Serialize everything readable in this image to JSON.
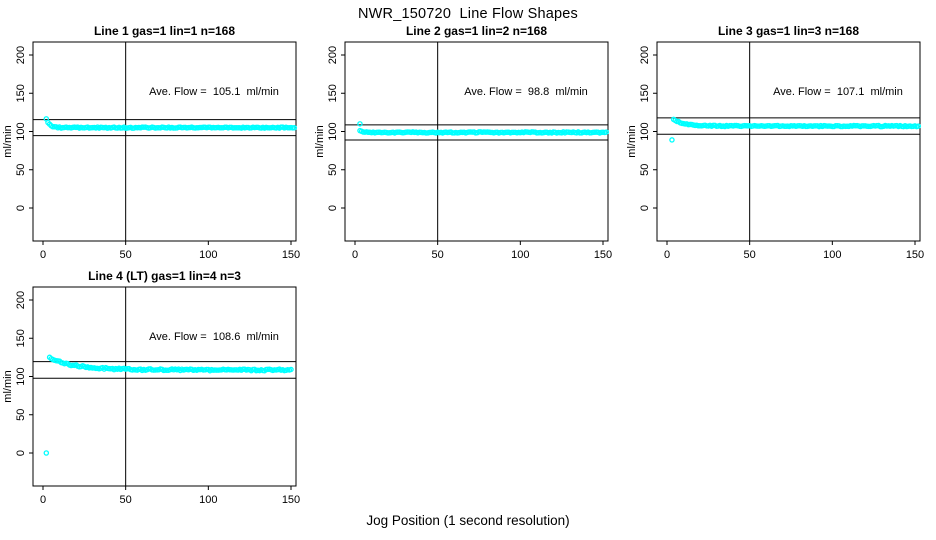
{
  "figure": {
    "title": "NWR_150720  Line Flow Shapes",
    "xlabel": "Jog Position (1 second resolution)",
    "background_color": "#FFFFFF",
    "point_color": "#00FFFF",
    "axis_color": "#000000"
  },
  "chart_data": [
    {
      "type": "scatter",
      "title": "Line 1 gas=1 lin=1 n=168",
      "annotation": "Ave. Flow =  105.1  ml/min",
      "ave_flow_ml_min": 105.1,
      "ylabel": "ml/min",
      "xticks": [
        0,
        50,
        100,
        150
      ],
      "yticks": [
        0,
        50,
        100,
        150,
        200
      ],
      "xlim": [
        0,
        155
      ],
      "ylim": [
        0,
        200
      ],
      "ref_vline_x": 50,
      "ref_hlines": [
        115.6,
        94.6
      ],
      "series": {
        "x_start": 2,
        "x_end": 152,
        "baseline": 105.1,
        "initial_spike": 12,
        "decay_tau": 1.8,
        "noise": 0.7
      },
      "outlier_points": []
    },
    {
      "type": "scatter",
      "title": "Line 2 gas=1 lin=2 n=168",
      "annotation": "Ave. Flow =  98.8  ml/min",
      "ave_flow_ml_min": 98.8,
      "ylabel": "ml/min",
      "xticks": [
        0,
        50,
        100,
        150
      ],
      "yticks": [
        0,
        50,
        100,
        150,
        200
      ],
      "xlim": [
        0,
        155
      ],
      "ylim": [
        0,
        200
      ],
      "ref_vline_x": 50,
      "ref_hlines": [
        108.7,
        88.9
      ],
      "series": {
        "x_start": 3,
        "x_end": 152,
        "baseline": 98.8,
        "initial_spike": 2.5,
        "decay_tau": 2.5,
        "noise": 0.7
      },
      "outlier_points": [
        [
          3,
          110
        ]
      ]
    },
    {
      "type": "scatter",
      "title": "Line 3 gas=1 lin=3 n=168",
      "annotation": "Ave. Flow =  107.1  ml/min",
      "ave_flow_ml_min": 107.1,
      "ylabel": "ml/min",
      "xticks": [
        0,
        50,
        100,
        150
      ],
      "yticks": [
        0,
        50,
        100,
        150,
        200
      ],
      "xlim": [
        0,
        155
      ],
      "ylim": [
        0,
        200
      ],
      "ref_vline_x": 50,
      "ref_hlines": [
        117.8,
        96.4
      ],
      "series": {
        "x_start": 4,
        "x_end": 152,
        "baseline": 107.1,
        "initial_spike": 8.5,
        "decay_tau": 7,
        "noise": 0.7
      },
      "outlier_points": [
        [
          3,
          89
        ]
      ]
    },
    {
      "type": "scatter",
      "title": "Line 4 (LT) gas=1 lin=4 n=3",
      "annotation": "Ave. Flow =  108.6  ml/min",
      "ave_flow_ml_min": 108.6,
      "ylabel": "ml/min",
      "xticks": [
        0,
        50,
        100,
        150
      ],
      "yticks": [
        0,
        50,
        100,
        150,
        200
      ],
      "xlim": [
        0,
        155
      ],
      "ylim": [
        0,
        200
      ],
      "ref_vline_x": 50,
      "ref_hlines": [
        119.5,
        97.7
      ],
      "series": {
        "x_start": 4,
        "x_end": 150,
        "baseline": 108.6,
        "initial_spike": 15.5,
        "decay_tau": 16,
        "noise": 1.1
      },
      "outlier_points": [
        [
          2,
          0
        ]
      ]
    }
  ]
}
